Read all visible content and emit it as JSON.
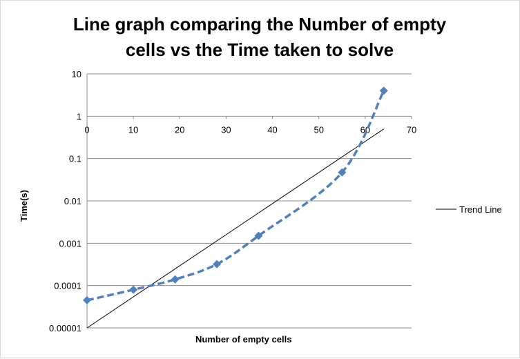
{
  "chart_data": {
    "type": "line",
    "title_line1": "Line graph comparing the Number of empty",
    "title_line2": "cells vs the Time taken to solve",
    "xlabel": "Number of empty cells",
    "ylabel": "Time(s)",
    "xlim": [
      0,
      70
    ],
    "x_ticks": [
      "0",
      "10",
      "20",
      "30",
      "40",
      "50",
      "60",
      "70"
    ],
    "y_scale": "log",
    "ylim": [
      1e-05,
      10
    ],
    "y_ticks": [
      "10",
      "1",
      "0.1",
      "0.01",
      "0.001",
      "0.0001",
      "0.00001"
    ],
    "grid": "horizontal",
    "x_axis_position": "y = 1",
    "legend_position": "right",
    "series": [
      {
        "x": [
          0,
          10,
          19,
          28,
          37,
          55,
          64
        ],
        "y": [
          4.5e-05,
          8e-05,
          0.00014,
          0.00032,
          0.0015,
          0.047,
          4
        ],
        "color": "#4f81bd",
        "style": "dashed",
        "marker": "diamond"
      },
      {
        "name": "Trend Line",
        "x": [
          0,
          64
        ],
        "y": [
          1e-05,
          0.5
        ],
        "color": "#000000",
        "style": "solid"
      }
    ]
  }
}
